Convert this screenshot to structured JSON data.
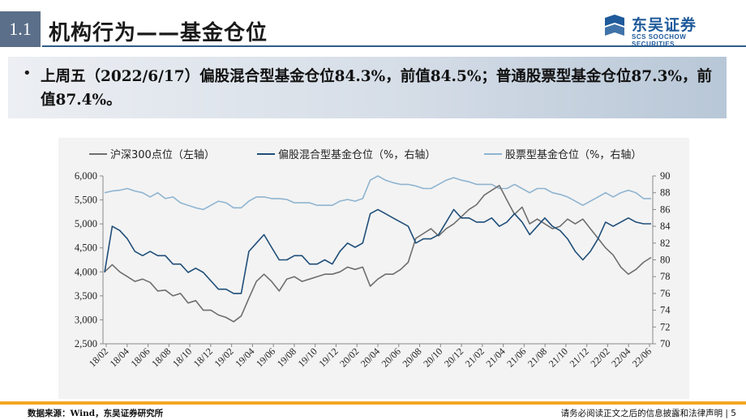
{
  "header": {
    "section_number": "1.1",
    "title": "机构行为——基金仓位",
    "logo_cn": "东吴证券",
    "logo_en": "SOOCHOW SECURITIES",
    "logo_mark_text": "SCS"
  },
  "bullet": {
    "text": "上周五（2022/6/17）偏股混合型基金仓位84.3%，前值84.5%；普通股票型基金仓位87.3%，前值87.4%。"
  },
  "footer": {
    "source": "数据来源：Wind，东吴证券研究所",
    "disclaimer": "请务必阅读正文之后的信息披露和法律声明 | 5"
  },
  "colors": {
    "hs300": "#6e6e6e",
    "mixed": "#1f4e79",
    "stock": "#8fb4d0",
    "accent": "#f5a623"
  },
  "chart_data": {
    "type": "line",
    "legend_position": "top",
    "grid": false,
    "x_tick_labels": [
      "18/02",
      "18/04",
      "18/06",
      "18/08",
      "18/10",
      "18/12",
      "19/02",
      "19/04",
      "19/06",
      "19/08",
      "19/10",
      "19/12",
      "20/02",
      "20/04",
      "20/06",
      "20/08",
      "20/10",
      "20/12",
      "21/02",
      "21/04",
      "21/06",
      "21/08",
      "21/10",
      "21/12",
      "22/02",
      "22/04",
      "22/06"
    ],
    "left_axis": {
      "ylim": [
        2500,
        6000
      ],
      "ticks": [
        "6,000",
        "5,500",
        "5,000",
        "4,500",
        "4,000",
        "3,500",
        "3,000",
        "2,500"
      ]
    },
    "right_axis": {
      "ylim": [
        70,
        90
      ],
      "ticks": [
        "90",
        "88",
        "86",
        "84",
        "82",
        "80",
        "78",
        "76",
        "74",
        "72",
        "70"
      ]
    },
    "series": [
      {
        "name": "沪深300点位（左轴）",
        "axis": "left",
        "values": [
          4000,
          4150,
          4000,
          3900,
          3800,
          3850,
          3780,
          3600,
          3620,
          3500,
          3550,
          3350,
          3400,
          3200,
          3200,
          3100,
          3050,
          2960,
          3080,
          3450,
          3800,
          3950,
          3800,
          3600,
          3850,
          3900,
          3800,
          3850,
          3900,
          3950,
          3950,
          4000,
          4100,
          4050,
          4100,
          3700,
          3850,
          3950,
          3950,
          4050,
          4200,
          4700,
          4800,
          4900,
          4750,
          4900,
          5000,
          5150,
          5300,
          5400,
          5600,
          5700,
          5800,
          5500,
          5200,
          5350,
          5000,
          5100,
          5000,
          4900,
          4950,
          5100,
          5000,
          5100,
          4900,
          4700,
          4500,
          4350,
          4100,
          3950,
          4050,
          4200,
          4300
        ]
      },
      {
        "name": "偏股混合型基金仓位（%，右轴）",
        "axis": "right",
        "values": [
          78.5,
          84,
          83.5,
          82.5,
          81,
          80.5,
          81,
          80.5,
          80.5,
          79.5,
          79.5,
          78.5,
          79,
          78.5,
          77.5,
          76.5,
          76.5,
          76,
          76,
          81,
          82,
          83,
          81.5,
          80,
          80,
          80.5,
          80.5,
          79.5,
          79.5,
          80,
          79.5,
          81,
          82,
          81.5,
          82,
          85.5,
          86,
          85.5,
          85,
          84.5,
          84,
          82,
          82.5,
          82.5,
          83,
          84.5,
          86,
          85,
          85,
          84.5,
          84.5,
          85,
          84,
          84.5,
          85.5,
          84.5,
          83,
          84,
          85,
          84,
          83.5,
          82.5,
          81,
          80,
          81,
          82.5,
          84.5,
          84,
          84.5,
          85,
          84.5,
          84.3,
          84.3
        ]
      },
      {
        "name": "股票型基金仓位（%，右轴）",
        "axis": "right",
        "values": [
          88,
          88.2,
          88.3,
          88.5,
          88.2,
          88,
          87.5,
          88,
          87.3,
          87.5,
          86.8,
          86.5,
          86.2,
          86,
          86.5,
          87,
          86.8,
          86.2,
          86.2,
          87,
          87.5,
          87.5,
          87.3,
          87.3,
          87.2,
          86.8,
          86.8,
          86.8,
          86.5,
          86.5,
          86.5,
          87,
          87.2,
          87,
          87.3,
          89.5,
          90,
          89.5,
          89.2,
          89,
          89,
          88.8,
          88.5,
          88.5,
          89,
          89.5,
          89.8,
          89.5,
          89.3,
          89,
          89,
          89,
          88.5,
          88.5,
          89,
          88.5,
          88,
          88.5,
          88.5,
          88,
          87.8,
          87.5,
          87,
          86.5,
          87,
          87.5,
          88,
          87.5,
          88,
          88.3,
          88,
          87.3,
          87.3
        ]
      }
    ]
  }
}
